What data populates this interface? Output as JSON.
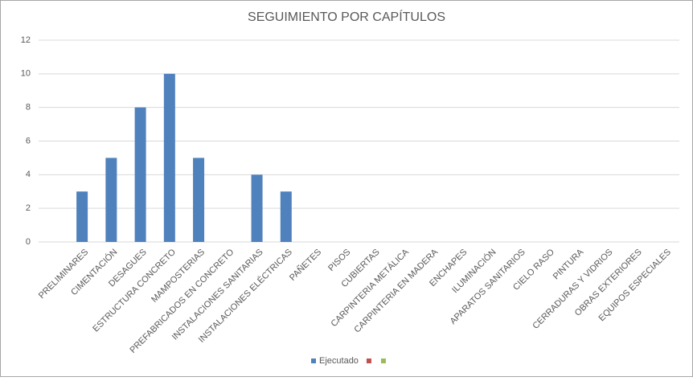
{
  "chart_data": {
    "type": "bar",
    "title": "SEGUIMIENTO POR CAPÍTULOS",
    "categories": [
      "PRELIMINARES",
      "CIMENTACIÓN",
      "DESAGUES",
      "ESTRUCTURA CONCRETO",
      "MAMPOSTERIAS",
      "PREFABRICADOS EN CONCRETO",
      "INSTALACIONES SANITARIAS",
      "INSTALACIONES ELÉCTRICAS",
      "PAÑETES",
      "PISOS",
      "CUBIERTAS",
      "CARPINTERIA METÁLICA",
      "CARPINTERIA EN MADERA",
      "ENCHAPES",
      "ILUMINACIÓN",
      "APARATOS SANITARIOS",
      "CIELO RASO",
      "PINTURA",
      "CERRADURAS Y VIDRIOS",
      "OBRAS EXTERIORES",
      "EQUIPOS ESPECIALES"
    ],
    "series": [
      {
        "name": "Ejecutado",
        "color": "#4f81bd",
        "values": [
          3,
          5,
          8,
          10,
          5,
          0,
          4,
          3,
          0,
          0,
          0,
          0,
          0,
          0,
          0,
          0,
          0,
          0,
          0,
          0,
          0
        ]
      },
      {
        "color": "#c0504d"
      },
      {
        "color": "#9bbb59"
      }
    ],
    "ylim": [
      0,
      12
    ],
    "yticks": [
      0,
      2,
      4,
      6,
      8,
      10,
      12
    ],
    "grid": true,
    "legend": "bottom"
  }
}
